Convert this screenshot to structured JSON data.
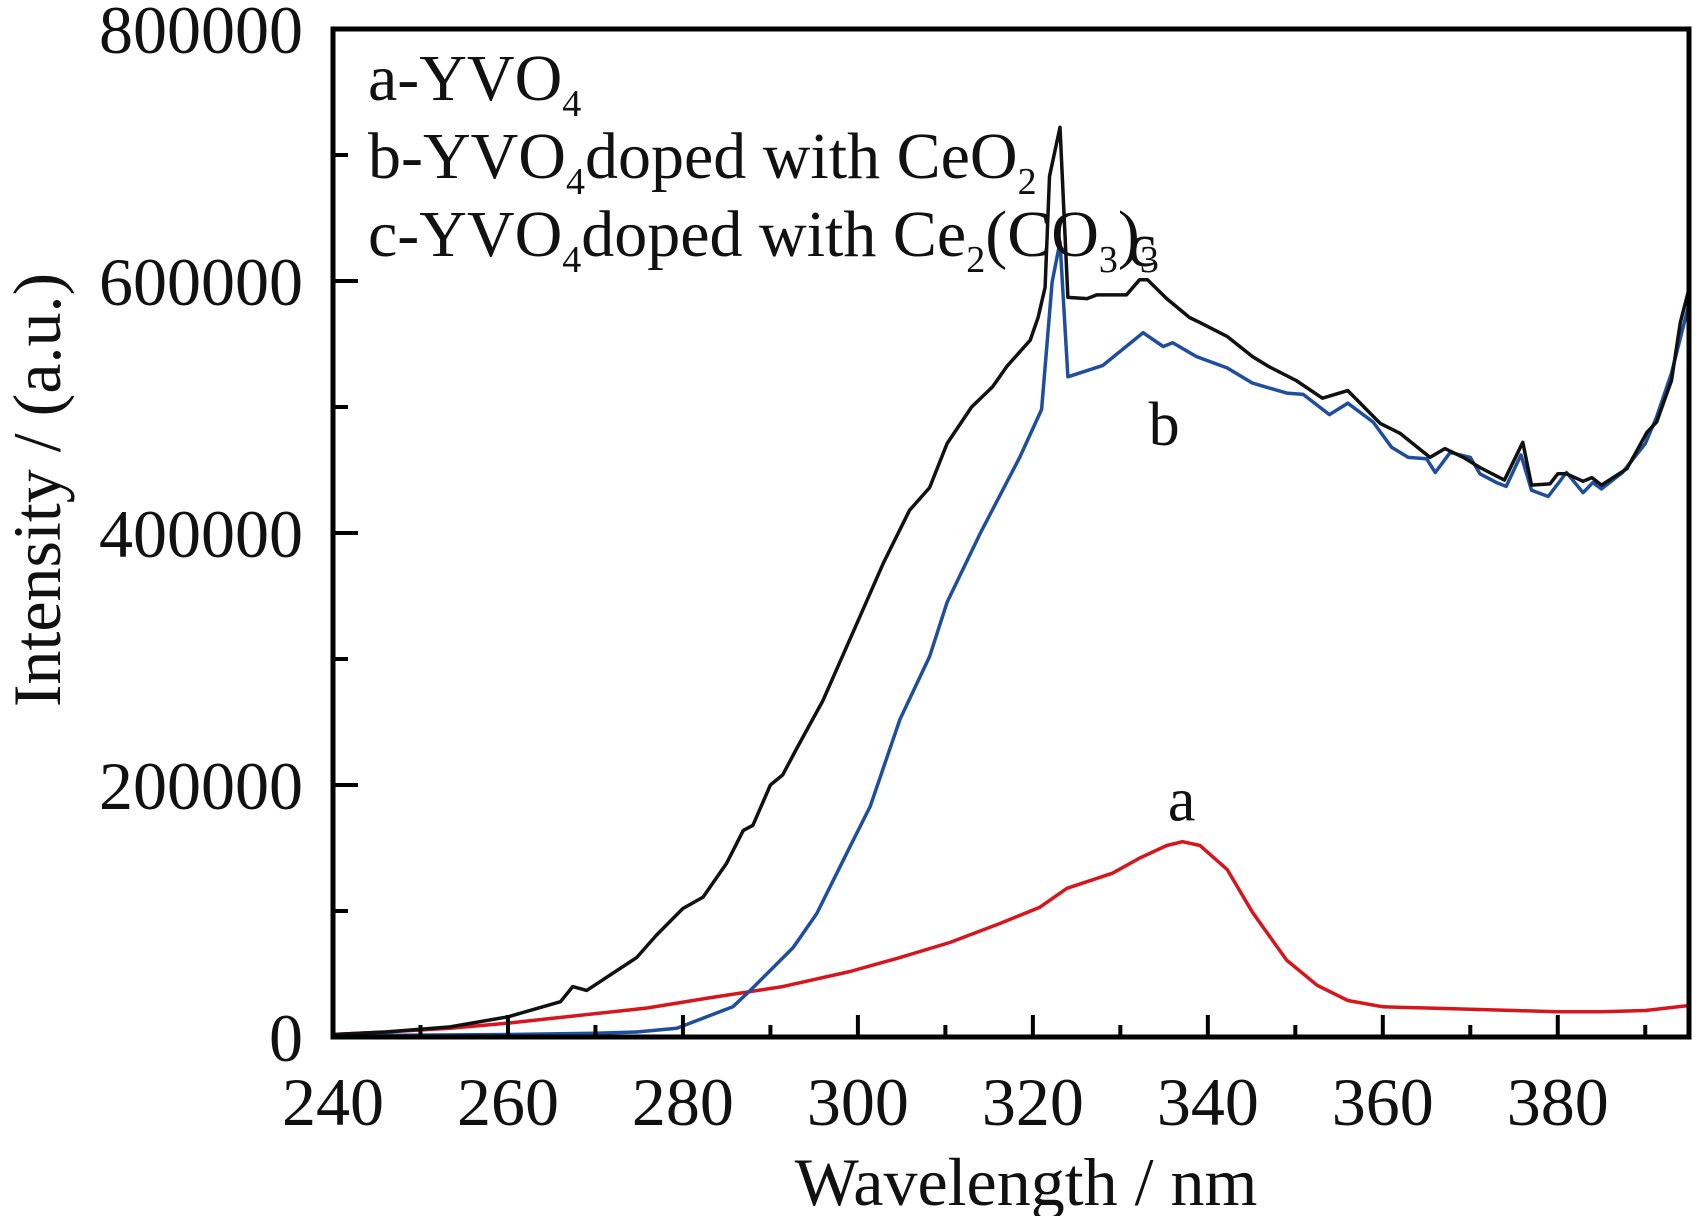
{
  "chart_data": {
    "type": "line",
    "title": "",
    "xlabel": "Wavelength / nm",
    "ylabel": "Intensity / (a.u.)",
    "xlim": [
      240,
      395
    ],
    "ylim": [
      0,
      800000
    ],
    "grid": false,
    "x_ticks": [
      240,
      260,
      280,
      300,
      320,
      340,
      360,
      380
    ],
    "x_tick_labels": [
      "240",
      "260",
      "280",
      "300",
      "320",
      "340",
      "360",
      "380"
    ],
    "x_minor_ticks": [
      250,
      270,
      290,
      310,
      330,
      350,
      370,
      390
    ],
    "y_ticks": [
      0,
      200000,
      400000,
      600000,
      800000
    ],
    "y_tick_labels": [
      "0",
      "200000",
      "400000",
      "600000",
      "800000"
    ],
    "y_minor_ticks": [
      100000,
      300000,
      500000,
      700000
    ],
    "legend": {
      "placement": "top-left",
      "entries": [
        {
          "prefix": "a-YVO",
          "sub1": "4",
          "mid": "",
          "sub2": "",
          "suffix": ""
        },
        {
          "prefix": "b-YVO",
          "sub1": "4",
          "mid": "doped with CeO",
          "sub2": "2",
          "suffix": ""
        },
        {
          "prefix": "c-YVO",
          "sub1": "4",
          "mid": "doped with Ce",
          "sub2": "2",
          "suffix": "(CO",
          "sub3": "3",
          "tail": ")",
          "sub4": "3"
        }
      ]
    },
    "series": [
      {
        "name": "a-YVO4",
        "label": "a",
        "color": "#d7151d",
        "label_at": [
          337,
          172000
        ],
        "x": [
          240,
          246,
          253.4,
          260,
          267.9,
          275.9,
          283,
          291.4,
          299.1,
          304.8,
          310.5,
          316.2,
          320.8,
          323.9,
          329.1,
          332.2,
          335.3,
          337.1,
          339.1,
          342.2,
          345.1,
          349,
          352.5,
          356,
          360,
          365,
          370,
          375,
          380,
          385,
          390,
          395
        ],
        "y": [
          2000,
          4000,
          7000,
          11000,
          17000,
          23000,
          31000,
          40000,
          52000,
          63000,
          75000,
          90000,
          103000,
          118000,
          130000,
          142000,
          152000,
          155000,
          152000,
          133000,
          99000,
          61000,
          41000,
          29000,
          24000,
          23000,
          22000,
          21000,
          20000,
          20000,
          21000,
          25000
        ]
      },
      {
        "name": "b-YVO4 doped with CeO2",
        "label": "b",
        "color": "#1f4e9c",
        "label_at": [
          335,
          470000
        ],
        "x": [
          240,
          250,
          260,
          270,
          274.7,
          279.3,
          285.7,
          287.7,
          292.6,
          295.3,
          299.1,
          301.4,
          304.8,
          308.2,
          310.2,
          314,
          317,
          318.5,
          321,
          322.2,
          323.1,
          324,
          328,
          332.6,
          334.9,
          336,
          338.7,
          342.2,
          345.1,
          349,
          350.9,
          353.9,
          356,
          358.9,
          361,
          362.9,
          365,
          366,
          367.7,
          370,
          371.1,
          373,
          374.1,
          375.8,
          377,
          378.9,
          381,
          382.9,
          384,
          385,
          387.4,
          390,
          391.3,
          393,
          394.9
        ],
        "y": [
          1000,
          1500,
          2000,
          3000,
          4000,
          7000,
          24000,
          37000,
          71000,
          98000,
          151000,
          183000,
          252000,
          302000,
          345000,
          400000,
          440000,
          460000,
          498000,
          599000,
          631000,
          524000,
          533000,
          559000,
          548000,
          551000,
          540000,
          531000,
          519000,
          511000,
          510000,
          494000,
          503000,
          488000,
          468000,
          460000,
          459000,
          448000,
          464000,
          460000,
          447000,
          440000,
          437000,
          462000,
          434000,
          429000,
          448000,
          432000,
          440000,
          435000,
          448000,
          471000,
          492000,
          527000,
          579000
        ]
      },
      {
        "name": "c-YVO4 doped with Ce2(CO3)3",
        "label": "c",
        "color": "#111111",
        "label_at": [
          332.5,
          612000
        ],
        "x": [
          240,
          246,
          253.4,
          260,
          266,
          267.4,
          269,
          274.7,
          277,
          280,
          282.3,
          285,
          286.9,
          288,
          290,
          291.4,
          293,
          296,
          300,
          302.9,
          305.9,
          308.2,
          310.2,
          313,
          315.4,
          317,
          319.7,
          320.6,
          321.4,
          321.9,
          323.1,
          324,
          326.2,
          327.3,
          330.7,
          332.2,
          333.1,
          335.3,
          337.9,
          339.1,
          342.2,
          345.1,
          347,
          350.1,
          353.1,
          356,
          359.7,
          362,
          365.4,
          367.1,
          369.2,
          371.1,
          373.9,
          376,
          377,
          379.1,
          380,
          381,
          382.9,
          383.9,
          385,
          387.9,
          390.2,
          391.3,
          393,
          394,
          394.9
        ],
        "y": [
          2000,
          4000,
          8000,
          16000,
          28000,
          40000,
          37000,
          63000,
          81000,
          102000,
          111000,
          138000,
          164000,
          168000,
          200000,
          208000,
          229000,
          267000,
          330000,
          376000,
          418000,
          436000,
          471000,
          500000,
          516000,
          532000,
          553000,
          571000,
          595000,
          683000,
          722000,
          587000,
          586000,
          589000,
          589000,
          601000,
          601000,
          586000,
          571000,
          567000,
          556000,
          540000,
          532000,
          521000,
          507000,
          513000,
          487000,
          479000,
          460000,
          467000,
          460000,
          452000,
          442000,
          472000,
          438000,
          439000,
          447000,
          447000,
          441000,
          444000,
          438000,
          451000,
          480000,
          488000,
          521000,
          567000,
          591000
        ]
      }
    ]
  }
}
